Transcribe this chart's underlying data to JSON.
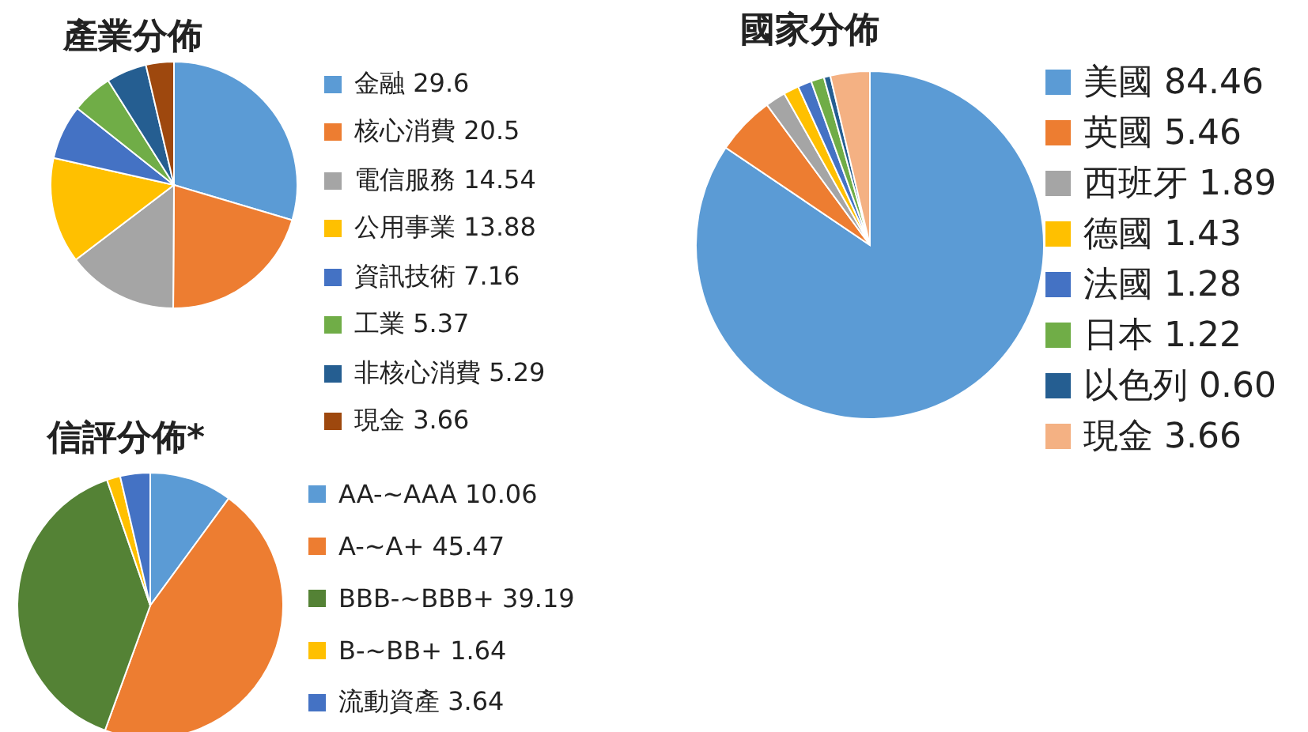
{
  "chart_data": [
    {
      "type": "pie",
      "title": "產業分佈",
      "categories": [
        "金融",
        "核心消費",
        "電信服務",
        "公用事業",
        "資訊技術",
        "工業",
        "非核心消費",
        "現金"
      ],
      "values": [
        29.6,
        20.5,
        14.54,
        13.88,
        7.16,
        5.37,
        5.29,
        3.66
      ],
      "value_labels": [
        "29.6",
        "20.5",
        "14.54",
        "13.88",
        "7.16",
        "5.37",
        "5.29",
        "3.66"
      ],
      "colors": [
        "#5b9bd5",
        "#ed7d31",
        "#a5a5a5",
        "#ffc000",
        "#4472c4",
        "#70ad47",
        "#255e91",
        "#9e480e"
      ],
      "legend": "right"
    },
    {
      "type": "pie",
      "title": "信評分佈*",
      "categories": [
        "AA-~AAA",
        "A-~A+",
        "BBB-~BBB+",
        "B-~BB+",
        "流動資產"
      ],
      "values": [
        10.06,
        45.47,
        39.19,
        1.64,
        3.64
      ],
      "value_labels": [
        "10.06",
        "45.47",
        "39.19",
        "1.64",
        "3.64"
      ],
      "colors": [
        "#5b9bd5",
        "#ed7d31",
        "#548235",
        "#ffc000",
        "#4472c4"
      ],
      "legend": "right"
    },
    {
      "type": "pie",
      "title": "國家分佈",
      "categories": [
        "美國",
        "英國",
        "西班牙",
        "德國",
        "法國",
        "日本",
        "以色列",
        "現金"
      ],
      "values": [
        84.46,
        5.46,
        1.89,
        1.43,
        1.28,
        1.22,
        0.6,
        3.66
      ],
      "value_labels": [
        "84.46",
        "5.46",
        "1.89",
        "1.43",
        "1.28",
        "1.22",
        "0.60",
        "3.66"
      ],
      "colors": [
        "#5b9bd5",
        "#ed7d31",
        "#a5a5a5",
        "#ffc000",
        "#4472c4",
        "#70ad47",
        "#255e91",
        "#f4b183"
      ],
      "legend": "right"
    }
  ]
}
